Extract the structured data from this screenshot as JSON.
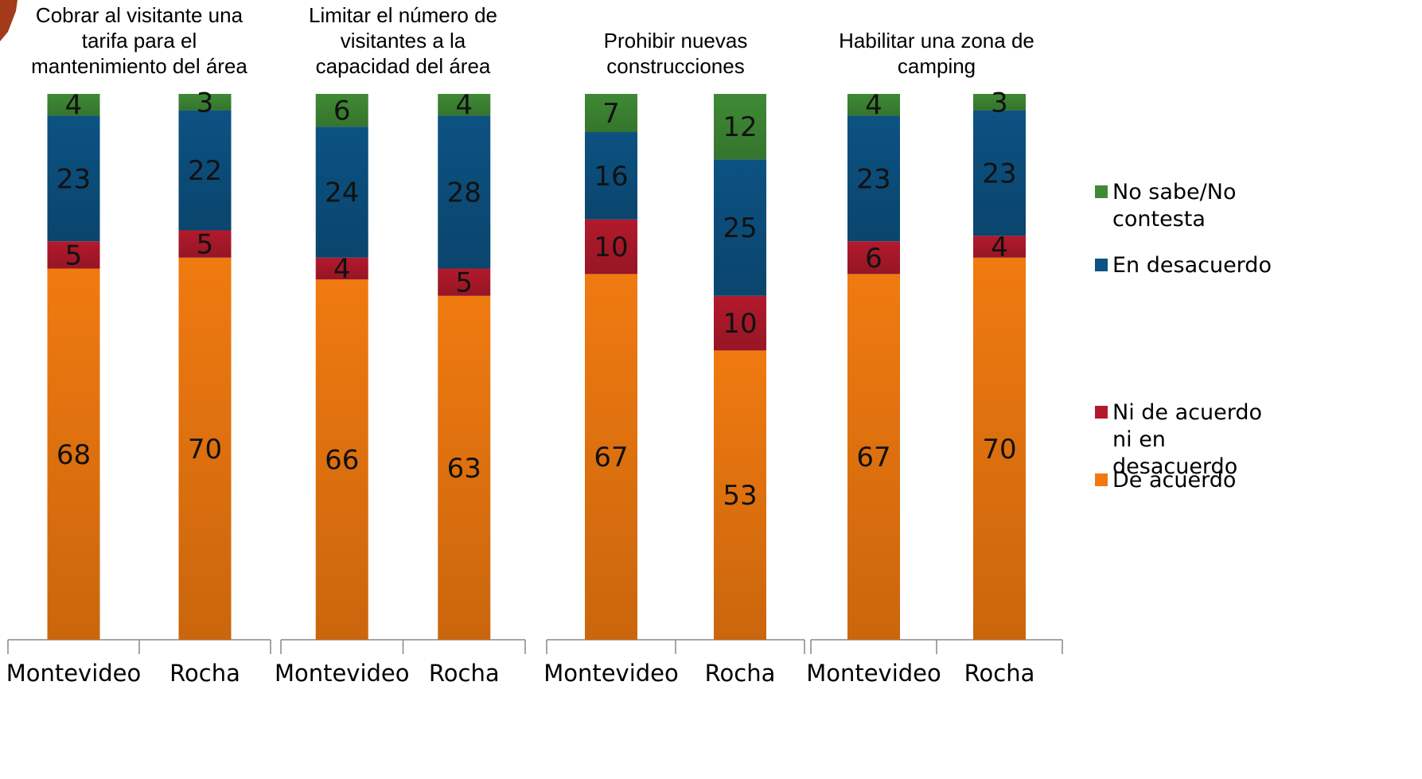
{
  "chart_data": {
    "type": "bar",
    "stacked": true,
    "ylim": [
      0,
      100
    ],
    "grid": false,
    "legend_position": "right",
    "categories": [
      "Montevideo",
      "Rocha"
    ],
    "series_colors": {
      "De acuerdo": "#f07a10",
      "Ni de acuerdo ni en desacuerdo": "#b21a2c",
      "En desacuerdo": "#0c5282",
      "No sabe/No contesta": "#3f8a35"
    },
    "legend": [
      {
        "name": "No sabe/No contesta",
        "lines": [
          "No sabe/No",
          "contesta"
        ],
        "color": "#3f8a35"
      },
      {
        "name": "En desacuerdo",
        "lines": [
          "En desacuerdo"
        ],
        "color": "#0c5282"
      },
      {
        "name": "Ni de acuerdo ni en desacuerdo",
        "lines": [
          "Ni de acuerdo",
          "ni en",
          "desacuerdo"
        ],
        "color": "#b21a2c"
      },
      {
        "name": "De acuerdo",
        "lines": [
          "De acuerdo"
        ],
        "color": "#f07a10"
      }
    ],
    "panels": [
      {
        "title_lines": [
          "Cobrar al visitante una",
          "tarifa para el",
          "mantenimiento del área"
        ],
        "series": [
          {
            "name": "De acuerdo",
            "values": [
              68,
              70
            ]
          },
          {
            "name": "Ni de acuerdo ni en desacuerdo",
            "values": [
              5,
              5
            ]
          },
          {
            "name": "En desacuerdo",
            "values": [
              23,
              22
            ]
          },
          {
            "name": "No sabe/No contesta",
            "values": [
              4,
              3
            ]
          }
        ]
      },
      {
        "title_lines": [
          "Limitar el número de",
          "visitantes a la",
          "capacidad del área"
        ],
        "series": [
          {
            "name": "De acuerdo",
            "values": [
              66,
              63
            ]
          },
          {
            "name": "Ni de acuerdo ni en desacuerdo",
            "values": [
              4,
              5
            ]
          },
          {
            "name": "En desacuerdo",
            "values": [
              24,
              28
            ]
          },
          {
            "name": "No sabe/No contesta",
            "values": [
              6,
              4
            ]
          }
        ]
      },
      {
        "title_lines": [
          "Prohibir nuevas",
          "construcciones"
        ],
        "series": [
          {
            "name": "De acuerdo",
            "values": [
              67,
              53
            ]
          },
          {
            "name": "Ni de acuerdo ni en desacuerdo",
            "values": [
              10,
              10
            ]
          },
          {
            "name": "En desacuerdo",
            "values": [
              16,
              25
            ]
          },
          {
            "name": "No sabe/No contesta",
            "values": [
              7,
              12
            ]
          }
        ]
      },
      {
        "title_lines": [
          "Habilitar una zona de",
          "camping"
        ],
        "series": [
          {
            "name": "De acuerdo",
            "values": [
              67,
              70
            ]
          },
          {
            "name": "Ni de acuerdo ni en desacuerdo",
            "values": [
              6,
              4
            ]
          },
          {
            "name": "En desacuerdo",
            "values": [
              23,
              23
            ]
          },
          {
            "name": "No sabe/No contesta",
            "values": [
              4,
              3
            ]
          }
        ]
      }
    ]
  }
}
